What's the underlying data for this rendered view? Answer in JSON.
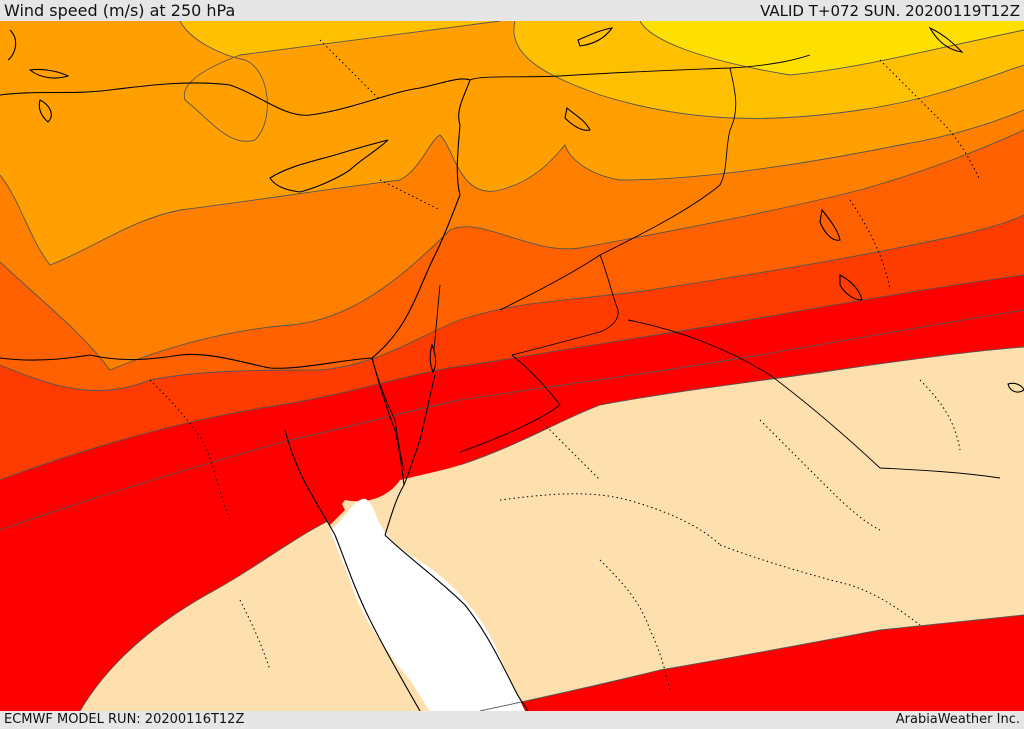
{
  "header": {
    "title": "Wind speed (m/s) at 250 hPa",
    "valid_time": "VALID T+072 SUN. 20200119T12Z"
  },
  "footer": {
    "model_run": "ECMWF MODEL RUN: 20200116T12Z",
    "credit": "ArabiaWeather Inc."
  },
  "map": {
    "colors": {
      "sea": "#ffffff",
      "land": "#fde0ae",
      "band1": "#fde000",
      "band2": "#fec000",
      "band3": "#ffa000",
      "band4": "#ff8000",
      "band5": "#ff6000",
      "band6": "#ff3c00",
      "band7": "#ff0000",
      "contour": "#555555",
      "coast": "#000000"
    }
  }
}
